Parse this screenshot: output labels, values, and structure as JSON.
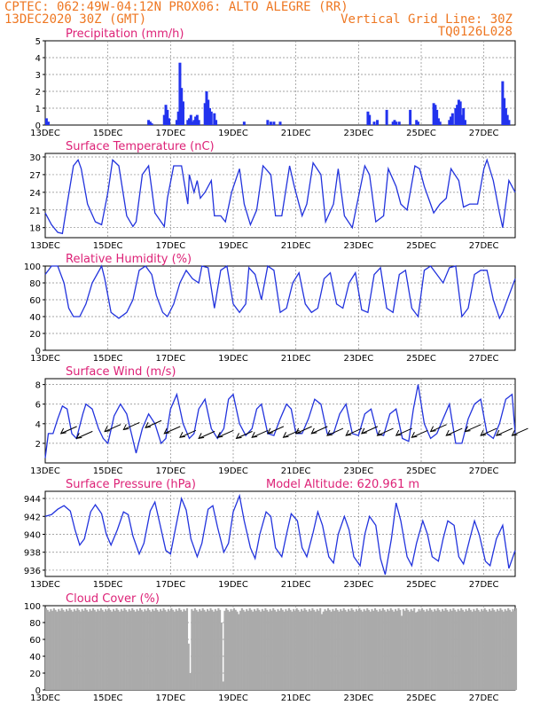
{
  "header": {
    "line1_left": "CPTEC:  062:49W-04:12N  PROX06: ALTO ALEGRE (RR)",
    "line2_left": "13DEC2020 30Z (GMT)",
    "line2_right": "Vertical Grid Line: 30Z",
    "line3_right": "TQ0126L028"
  },
  "colors": {
    "header": "#ee7722",
    "panel_title": "#dd2277",
    "line": "#2233dd",
    "bar": "#2233ee",
    "cloud": "#aaaaaa"
  },
  "chart_data": [
    {
      "type": "bar",
      "title": "Precipitation (mm/h)",
      "x_ticks": [
        "13DEC",
        "15DEC",
        "17DEC",
        "19DEC",
        "21DEC",
        "23DEC",
        "25DEC",
        "27DEC"
      ],
      "x_tick_days": [
        0,
        2,
        4,
        6,
        8,
        10,
        12,
        14
      ],
      "x_range_days": [
        0,
        15
      ],
      "ylim": [
        0,
        5
      ],
      "y_ticks": [
        0,
        1,
        2,
        3,
        4,
        5
      ],
      "grid": true,
      "x_days": [
        0.04,
        0.1,
        3.3,
        3.35,
        3.4,
        3.8,
        3.85,
        3.9,
        3.95,
        4.2,
        4.25,
        4.3,
        4.35,
        4.4,
        4.55,
        4.6,
        4.65,
        4.7,
        4.75,
        4.8,
        4.85,
        4.9,
        5.1,
        5.15,
        5.2,
        5.25,
        5.3,
        5.4,
        5.45,
        6.35,
        7.1,
        7.2,
        7.3,
        7.5,
        10.3,
        10.35,
        10.5,
        10.6,
        10.9,
        11.1,
        11.15,
        11.2,
        11.3,
        11.65,
        11.85,
        11.9,
        12.4,
        12.45,
        12.5,
        12.55,
        12.6,
        12.9,
        12.95,
        13.0,
        13.1,
        13.15,
        13.2,
        13.25,
        13.3,
        13.35,
        13.4,
        14.6,
        14.65,
        14.7,
        14.75,
        14.8
      ],
      "values": [
        0.4,
        0.2,
        0.3,
        0.2,
        0.1,
        0.6,
        1.2,
        0.9,
        0.4,
        0.3,
        0.8,
        3.7,
        2.2,
        1.4,
        0.3,
        0.4,
        0.6,
        0.2,
        0.3,
        0.5,
        0.6,
        0.3,
        1.3,
        2.0,
        1.5,
        1.0,
        0.8,
        0.7,
        0.3,
        0.2,
        0.3,
        0.2,
        0.2,
        0.2,
        0.8,
        0.6,
        0.2,
        0.3,
        0.9,
        0.2,
        0.3,
        0.2,
        0.2,
        0.9,
        0.3,
        0.2,
        1.3,
        1.2,
        0.9,
        0.4,
        0.2,
        0.3,
        0.5,
        0.7,
        1.0,
        1.2,
        1.5,
        1.4,
        0.6,
        1.0,
        0.3,
        2.6,
        1.6,
        1.0,
        0.6,
        0.3
      ]
    },
    {
      "type": "line",
      "title": "Surface Temperature (nC)",
      "x_ticks": [
        "13DEC",
        "15DEC",
        "17DEC",
        "19DEC",
        "21DEC",
        "23DEC",
        "25DEC",
        "27DEC"
      ],
      "x_range_days": [
        0,
        15
      ],
      "ylim": [
        16.3,
        30.6
      ],
      "y_ticks": [
        18,
        21,
        24,
        27,
        30
      ],
      "grid": true,
      "x_days": [
        0,
        0.2,
        0.4,
        0.55,
        0.7,
        0.9,
        1.05,
        1.15,
        1.35,
        1.6,
        1.8,
        2.0,
        2.15,
        2.35,
        2.6,
        2.8,
        2.9,
        3.1,
        3.3,
        3.5,
        3.8,
        3.9,
        4.1,
        4.35,
        4.55,
        4.6,
        4.75,
        4.85,
        4.95,
        5.1,
        5.3,
        5.4,
        5.6,
        5.75,
        5.95,
        6.2,
        6.35,
        6.55,
        6.75,
        6.95,
        7.2,
        7.35,
        7.55,
        7.8,
        7.95,
        8.2,
        8.35,
        8.55,
        8.8,
        8.95,
        9.2,
        9.35,
        9.55,
        9.8,
        9.95,
        10.2,
        10.35,
        10.55,
        10.8,
        10.95,
        11.2,
        11.35,
        11.55,
        11.8,
        11.95,
        12.1,
        12.3,
        12.4,
        12.6,
        12.8,
        12.95,
        13.2,
        13.35,
        13.55,
        13.8,
        14.0,
        14.1,
        14.3,
        14.5,
        14.6,
        14.8,
        15.0
      ],
      "values": [
        20.5,
        18.5,
        17.2,
        17.0,
        22,
        28.5,
        29.5,
        28,
        22,
        19,
        18.5,
        24,
        29.5,
        28.5,
        20,
        18.2,
        19,
        27,
        28.5,
        20.5,
        18.2,
        23,
        28.5,
        28.5,
        22,
        27,
        24,
        26,
        23,
        24,
        26,
        20,
        20,
        19,
        24,
        28,
        22,
        18.5,
        21,
        28.5,
        27,
        20,
        20,
        28.5,
        25,
        20,
        22,
        29,
        27,
        19,
        22,
        28,
        20,
        18,
        22,
        28.5,
        27,
        19,
        20,
        28,
        25,
        22,
        21,
        28.5,
        28,
        25,
        22,
        20.5,
        22,
        23,
        28,
        26,
        21.5,
        22,
        22,
        28,
        29.5,
        26,
        20.5,
        18,
        26,
        24
      ]
    },
    {
      "type": "line",
      "title": "Relative Humidity (%)",
      "x_ticks": [
        "13DEC",
        "15DEC",
        "17DEC",
        "19DEC",
        "21DEC",
        "23DEC",
        "25DEC",
        "27DEC"
      ],
      "x_range_days": [
        0,
        15
      ],
      "ylim": [
        0,
        100
      ],
      "y_ticks": [
        0,
        20,
        40,
        60,
        80,
        100
      ],
      "grid": true,
      "x_days": [
        0,
        0.2,
        0.4,
        0.6,
        0.75,
        0.9,
        1.1,
        1.3,
        1.5,
        1.8,
        1.9,
        2.1,
        2.35,
        2.6,
        2.8,
        3.0,
        3.2,
        3.4,
        3.55,
        3.75,
        3.9,
        4.1,
        4.3,
        4.5,
        4.7,
        4.9,
        5.0,
        5.2,
        5.4,
        5.6,
        5.8,
        6.0,
        6.2,
        6.4,
        6.5,
        6.7,
        6.9,
        7.1,
        7.3,
        7.5,
        7.7,
        7.9,
        8.1,
        8.3,
        8.5,
        8.7,
        8.9,
        9.1,
        9.3,
        9.5,
        9.7,
        9.9,
        10.1,
        10.3,
        10.5,
        10.7,
        10.9,
        11.1,
        11.3,
        11.5,
        11.7,
        11.9,
        12.1,
        12.3,
        12.5,
        12.7,
        12.9,
        13.1,
        13.3,
        13.5,
        13.7,
        13.9,
        14.1,
        14.3,
        14.5,
        14.6,
        14.8,
        15.0
      ],
      "values": [
        90,
        100,
        100,
        80,
        50,
        40,
        40,
        55,
        80,
        100,
        85,
        45,
        38,
        45,
        60,
        95,
        100,
        90,
        65,
        45,
        40,
        55,
        80,
        95,
        85,
        80,
        100,
        98,
        50,
        95,
        100,
        55,
        45,
        55,
        98,
        90,
        60,
        100,
        95,
        45,
        50,
        80,
        92,
        55,
        45,
        50,
        85,
        92,
        55,
        50,
        80,
        92,
        48,
        45,
        90,
        98,
        50,
        45,
        90,
        95,
        50,
        40,
        95,
        100,
        90,
        80,
        98,
        100,
        40,
        50,
        90,
        95,
        95,
        60,
        38,
        45,
        65,
        85
      ]
    },
    {
      "type": "line",
      "title": "Surface Wind (m/s)",
      "x_ticks": [
        "13DEC",
        "15DEC",
        "17DEC",
        "19DEC",
        "21DEC",
        "23DEC",
        "25DEC",
        "27DEC"
      ],
      "x_range_days": [
        0,
        15
      ],
      "ylim": [
        0,
        8.6
      ],
      "y_ticks": [
        2,
        4,
        6,
        8
      ],
      "grid": true,
      "x_days": [
        0,
        0.1,
        0.25,
        0.4,
        0.55,
        0.7,
        0.85,
        1.0,
        1.2,
        1.3,
        1.5,
        1.7,
        1.85,
        2.0,
        2.2,
        2.4,
        2.6,
        2.75,
        2.9,
        3.1,
        3.3,
        3.5,
        3.7,
        3.85,
        4.0,
        4.2,
        4.4,
        4.6,
        4.75,
        4.9,
        5.1,
        5.3,
        5.5,
        5.7,
        5.85,
        6.0,
        6.2,
        6.4,
        6.6,
        6.75,
        6.9,
        7.1,
        7.3,
        7.5,
        7.7,
        7.85,
        8.0,
        8.2,
        8.4,
        8.6,
        8.8,
        9.0,
        9.2,
        9.4,
        9.6,
        9.8,
        10.0,
        10.2,
        10.4,
        10.6,
        10.8,
        11.0,
        11.2,
        11.4,
        11.6,
        11.75,
        11.9,
        12.1,
        12.3,
        12.5,
        12.7,
        12.9,
        13.1,
        13.3,
        13.5,
        13.7,
        13.9,
        14.1,
        14.3,
        14.5,
        14.7,
        14.9,
        15.0
      ],
      "values": [
        0.5,
        3.0,
        3.0,
        4.5,
        5.8,
        5.5,
        3.0,
        2.5,
        5.0,
        6.0,
        5.5,
        3.5,
        2.5,
        2.0,
        4.8,
        6.0,
        5.0,
        3.0,
        1.0,
        3.5,
        5.0,
        4.0,
        2.0,
        2.5,
        5.5,
        7.0,
        4.0,
        2.5,
        3.0,
        5.5,
        6.5,
        3.5,
        2.5,
        3.5,
        6.5,
        7.0,
        4.0,
        2.8,
        3.5,
        5.5,
        6.0,
        3.0,
        2.8,
        4.5,
        6.0,
        5.5,
        3.0,
        3.0,
        4.5,
        6.5,
        6.0,
        3.0,
        3.0,
        5.0,
        6.0,
        3.0,
        2.8,
        5.0,
        5.5,
        3.0,
        2.8,
        5.0,
        5.5,
        2.5,
        2.2,
        5.5,
        8.0,
        4.0,
        2.5,
        3.0,
        4.5,
        6.0,
        2.0,
        2.0,
        4.5,
        6.0,
        6.5,
        3.0,
        2.5,
        4.0,
        6.5,
        7.0,
        3.0
      ],
      "arrow_x_days": [
        0.5,
        1.0,
        1.9,
        2.5,
        3.2,
        3.8,
        4.3,
        4.9,
        5.5,
        6.1,
        6.6,
        7.1,
        7.6,
        8.0,
        8.5,
        9.0,
        9.6,
        10.1,
        10.6,
        11.2,
        11.7,
        12.3,
        12.8,
        13.4,
        13.9,
        14.4,
        14.9
      ],
      "arrow_y": [
        3.0,
        2.5,
        3.2,
        3.4,
        3.6,
        3.0,
        2.6,
        2.5,
        2.6,
        2.5,
        2.6,
        3.0,
        2.6,
        3.0,
        3.0,
        2.8,
        2.8,
        3.0,
        2.8,
        2.8,
        2.6,
        3.2,
        2.8,
        3.2,
        2.8,
        2.8,
        2.8
      ]
    },
    {
      "type": "line",
      "title": "Surface Pressure (hPa)",
      "annotation": "Model Altitude: 620.961  m",
      "x_ticks": [
        "13DEC",
        "15DEC",
        "17DEC",
        "19DEC",
        "21DEC",
        "23DEC",
        "25DEC",
        "27DEC"
      ],
      "x_range_days": [
        0,
        15
      ],
      "ylim": [
        935.3,
        944.8
      ],
      "y_ticks": [
        936,
        938,
        940,
        942,
        944
      ],
      "grid": true,
      "x_days": [
        0,
        0.2,
        0.4,
        0.6,
        0.8,
        0.95,
        1.1,
        1.25,
        1.45,
        1.6,
        1.8,
        1.95,
        2.1,
        2.3,
        2.5,
        2.65,
        2.8,
        3.0,
        3.15,
        3.35,
        3.5,
        3.65,
        3.85,
        4.0,
        4.15,
        4.35,
        4.5,
        4.65,
        4.85,
        5.0,
        5.2,
        5.35,
        5.5,
        5.7,
        5.85,
        6.0,
        6.2,
        6.35,
        6.55,
        6.7,
        6.85,
        7.05,
        7.2,
        7.35,
        7.55,
        7.7,
        7.85,
        8.05,
        8.2,
        8.35,
        8.55,
        8.7,
        8.85,
        9.05,
        9.2,
        9.35,
        9.55,
        9.7,
        9.85,
        10.05,
        10.2,
        10.35,
        10.55,
        10.7,
        10.85,
        11.05,
        11.2,
        11.35,
        11.55,
        11.7,
        11.85,
        12.05,
        12.2,
        12.35,
        12.55,
        12.7,
        12.85,
        13.05,
        13.2,
        13.35,
        13.55,
        13.7,
        13.85,
        14.05,
        14.2,
        14.4,
        14.6,
        14.8,
        15.0
      ],
      "values": [
        942,
        942.2,
        942.8,
        943.2,
        942.6,
        940.5,
        938.8,
        939.5,
        942.5,
        943.3,
        942.3,
        940.0,
        938.8,
        940.5,
        942.5,
        942.2,
        939.8,
        937.8,
        939.0,
        942.6,
        943.6,
        941.3,
        938.2,
        937.8,
        940.5,
        944.0,
        942.7,
        939.5,
        937.5,
        939.0,
        942.8,
        943.2,
        940.8,
        938.0,
        939.0,
        942.5,
        944.3,
        941.5,
        938.5,
        937.3,
        940.0,
        942.5,
        942.0,
        938.5,
        937.5,
        940.0,
        942.3,
        941.5,
        938.5,
        937.5,
        940.2,
        942.5,
        941.0,
        937.5,
        936.8,
        940.0,
        942.0,
        940.5,
        937.5,
        936.5,
        940.0,
        942.0,
        941.0,
        937.3,
        935.5,
        939.5,
        943.5,
        941.5,
        937.5,
        936.5,
        939.0,
        941.5,
        940.0,
        937.5,
        937.0,
        939.5,
        941.5,
        941.0,
        937.5,
        936.7,
        939.5,
        941.5,
        940.0,
        937.0,
        936.5,
        939.5,
        941.0,
        936.2,
        938.2
      ]
    },
    {
      "type": "bar",
      "title": "Cloud Cover (%)",
      "x_ticks": [
        "13DEC",
        "15DEC",
        "17DEC",
        "19DEC",
        "21DEC",
        "23DEC",
        "25DEC",
        "27DEC"
      ],
      "x_range_days": [
        0,
        15
      ],
      "ylim": [
        0,
        100
      ],
      "y_ticks": [
        0,
        20,
        40,
        60,
        80,
        100
      ],
      "grid": true,
      "baseline_value": 97,
      "dips_x_days": [
        4.55,
        4.6,
        5.6,
        5.65,
        6.1,
        6.15,
        8.8,
        11.35,
        11.8
      ],
      "dips_values": [
        55,
        20,
        80,
        10,
        93,
        90,
        90,
        88,
        92
      ]
    }
  ]
}
